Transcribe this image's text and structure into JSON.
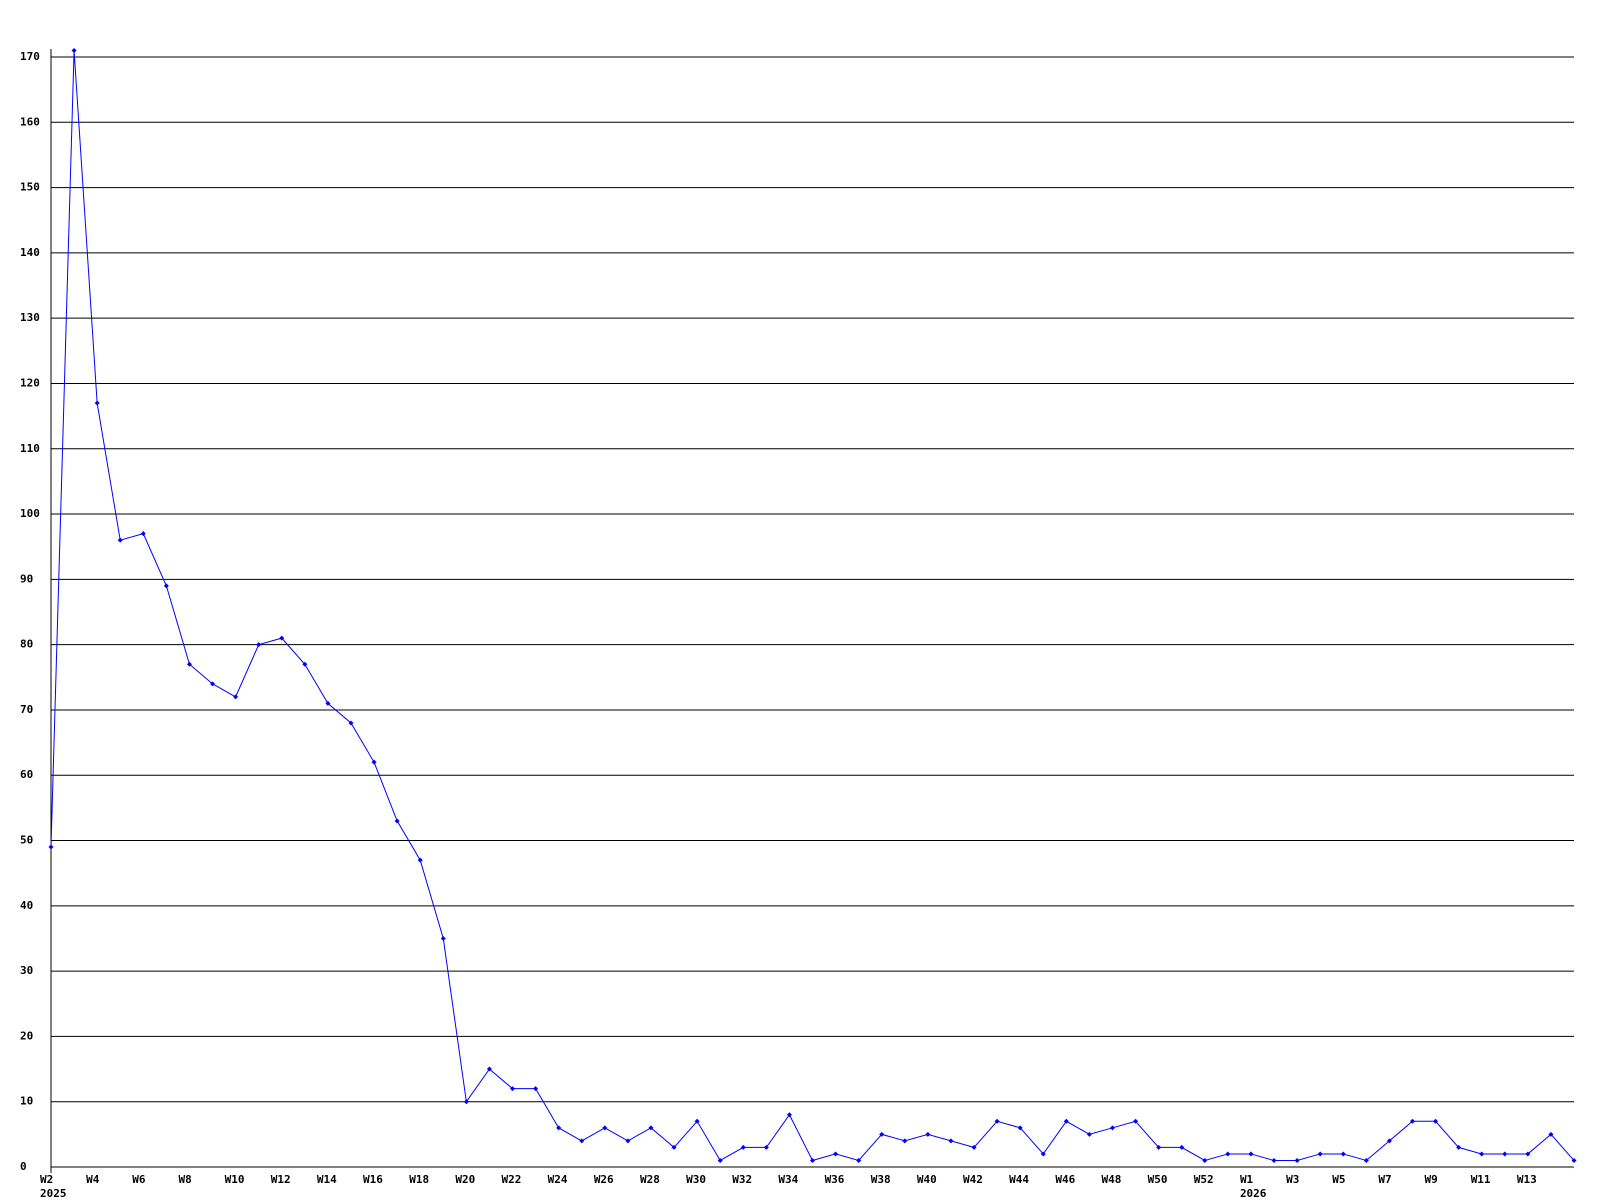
{
  "chart_data": {
    "type": "line",
    "categories": [
      "W2",
      null,
      "W4",
      null,
      "W6",
      null,
      "W8",
      null,
      "W10",
      null,
      "W12",
      null,
      "W14",
      null,
      "W16",
      null,
      "W18",
      null,
      "W20",
      null,
      "W22",
      null,
      "W24",
      null,
      "W26",
      null,
      "W28",
      null,
      "W30",
      null,
      "W32",
      null,
      "W34",
      null,
      "W36",
      null,
      "W38",
      null,
      "W40",
      null,
      "W42",
      null,
      "W44",
      null,
      "W46",
      null,
      "W48",
      null,
      "W50",
      null,
      "W52",
      null,
      "W1",
      null,
      "W3",
      null,
      "W5",
      null,
      "W7",
      null,
      "W9",
      null,
      "W11",
      null,
      "W13",
      null,
      null
    ],
    "years": [
      "2025",
      null,
      null,
      null,
      null,
      null,
      null,
      null,
      null,
      null,
      null,
      null,
      null,
      null,
      null,
      null,
      null,
      null,
      null,
      null,
      null,
      null,
      null,
      null,
      null,
      null,
      null,
      null,
      null,
      null,
      null,
      null,
      null,
      null,
      null,
      null,
      null,
      null,
      null,
      null,
      null,
      null,
      null,
      null,
      null,
      null,
      null,
      null,
      null,
      null,
      null,
      null,
      "2026",
      null,
      null,
      null,
      null,
      null,
      null,
      null,
      null,
      null,
      null,
      null,
      null,
      null,
      null
    ],
    "series": [
      {
        "color": "#0000ff",
        "values": [
          49,
          171,
          117,
          96,
          97,
          89,
          77,
          74,
          72,
          80,
          81,
          77,
          71,
          68,
          62,
          53,
          47,
          35,
          10,
          15,
          12,
          12,
          6,
          4,
          6,
          4,
          6,
          3,
          7,
          1,
          3,
          3,
          8,
          1,
          2,
          1,
          5,
          4,
          5,
          4,
          3,
          7,
          6,
          2,
          7,
          5,
          6,
          7,
          3,
          3,
          1,
          2,
          2,
          1,
          1,
          2,
          2,
          1,
          4,
          7,
          7,
          3,
          2,
          2,
          2,
          5,
          1
        ]
      }
    ],
    "ylim": [
      0,
      170
    ],
    "yticks": [
      0,
      10,
      20,
      30,
      40,
      50,
      60,
      70,
      80,
      90,
      100,
      110,
      120,
      130,
      140,
      150,
      160,
      170
    ],
    "grid": true
  }
}
